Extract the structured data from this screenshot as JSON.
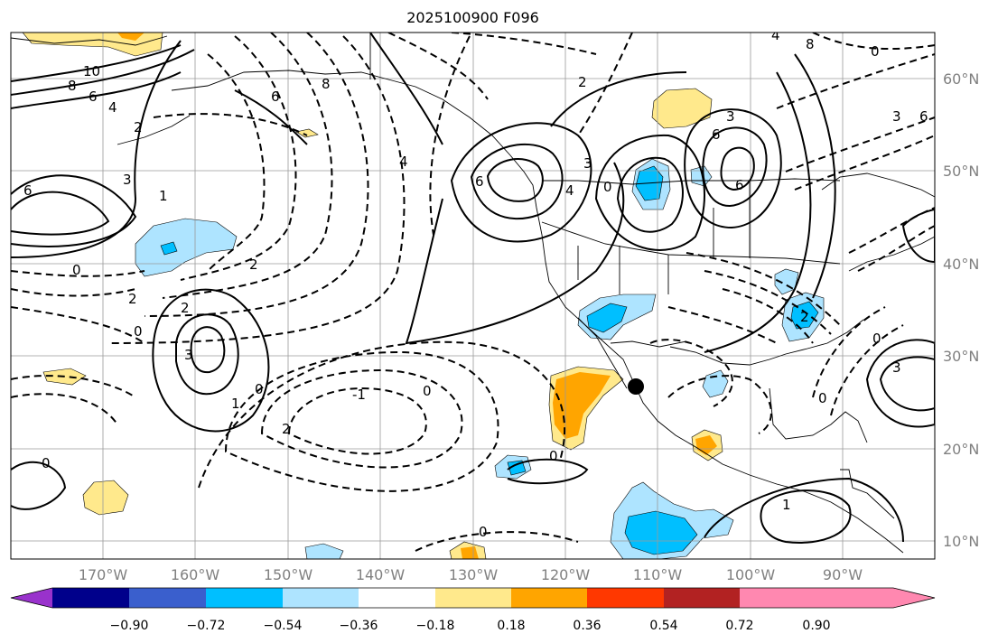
{
  "title": "2025100900 F096",
  "map": {
    "lon_range": [
      -180,
      -80
    ],
    "lat_range": [
      8,
      65
    ],
    "lon_ticks": [
      {
        "value": -170,
        "label": "170°W"
      },
      {
        "value": -160,
        "label": "160°W"
      },
      {
        "value": -150,
        "label": "150°W"
      },
      {
        "value": -140,
        "label": "140°W"
      },
      {
        "value": -130,
        "label": "130°W"
      },
      {
        "value": -120,
        "label": "120°W"
      },
      {
        "value": -110,
        "label": "110°W"
      },
      {
        "value": -100,
        "label": "100°W"
      },
      {
        "value": -90,
        "label": "90°W"
      }
    ],
    "lat_ticks": [
      {
        "value": 60,
        "label": "60°N"
      },
      {
        "value": 50,
        "label": "50°N"
      },
      {
        "value": 40,
        "label": "40°N"
      },
      {
        "value": 30,
        "label": "30°N"
      },
      {
        "value": 20,
        "label": "20°N"
      },
      {
        "value": 10,
        "label": "10°N"
      }
    ],
    "contour_labels": [
      "10",
      "8",
      "6",
      "4",
      "2",
      "6",
      "3",
      "1",
      "0",
      "2",
      "2",
      "3",
      "0",
      "1",
      "2",
      "0",
      "-1",
      "0",
      "0",
      "0",
      "0",
      "1",
      "4",
      "2",
      "6",
      "3",
      "4",
      "6",
      "3",
      "8",
      "0",
      "6",
      "6",
      "2",
      "4",
      "3",
      "6",
      "8",
      "0",
      "2",
      "0",
      "3",
      "0"
    ],
    "marker": {
      "name": "location-marker",
      "lon": -111,
      "lat": 27
    }
  },
  "colorbar": {
    "colors": [
      "#9932cc",
      "#00008b",
      "#3a5fcd",
      "#00bfff",
      "#aee4ff",
      "#ffffff",
      "#ffe98c",
      "#ffa500",
      "#ff3800",
      "#b22222",
      "#ff88b0"
    ],
    "tick_labels": [
      "−0.90",
      "−0.72",
      "−0.54",
      "−0.36",
      "−0.18",
      "0.18",
      "0.36",
      "0.54",
      "0.72",
      "0.90"
    ]
  }
}
